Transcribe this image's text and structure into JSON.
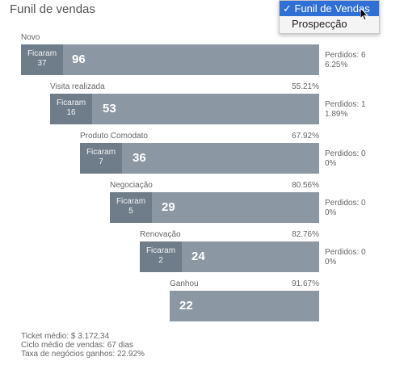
{
  "header": {
    "title": "Funil de vendas"
  },
  "dropdown": {
    "options": [
      {
        "label": "✓ Funil de Vendas",
        "selected": true
      },
      {
        "label": "Prospecção",
        "selected": false
      }
    ]
  },
  "funnel": {
    "stages": [
      {
        "name": "Novo",
        "pct": "",
        "remained_label": "Ficaram",
        "remained": "37",
        "count": "96",
        "lost_label": "Perdidos: 6",
        "lost_pct": "6.25%",
        "count_value": 96
      },
      {
        "name": "Visita realizada",
        "pct": "55.21%",
        "remained_label": "Ficaram",
        "remained": "16",
        "count": "53",
        "lost_label": "Perdidos: 1",
        "lost_pct": "1.89%",
        "count_value": 53
      },
      {
        "name": "Produto Comodato",
        "pct": "67.92%",
        "remained_label": "Ficaram",
        "remained": "7",
        "count": "36",
        "lost_label": "Perdidos: 0",
        "lost_pct": "0%",
        "count_value": 36
      },
      {
        "name": "Negociação",
        "pct": "80.56%",
        "remained_label": "Ficaram",
        "remained": "5",
        "count": "29",
        "lost_label": "Perdidos: 0",
        "lost_pct": "0%",
        "count_value": 29
      },
      {
        "name": "Renovação",
        "pct": "82.76%",
        "remained_label": "Ficaram",
        "remained": "2",
        "count": "24",
        "lost_label": "Perdidos: 0",
        "lost_pct": "0%",
        "count_value": 24
      },
      {
        "name": "Ganhou",
        "pct": "91.67%",
        "remained_label": "",
        "remained": "",
        "count": "22",
        "lost_label": "",
        "lost_pct": "",
        "count_value": 22
      }
    ]
  },
  "footer": {
    "ticket": "Ticket médio: $ 3.172,34",
    "cycle": "Ciclo médio de vendas: 67 dias",
    "rate": "Taxa de negócios ganhos: 22.92%"
  },
  "colors": {
    "bar": "#8b98a4",
    "bar_dark": "#6f7d8a",
    "accent": "#2f6fd6"
  }
}
